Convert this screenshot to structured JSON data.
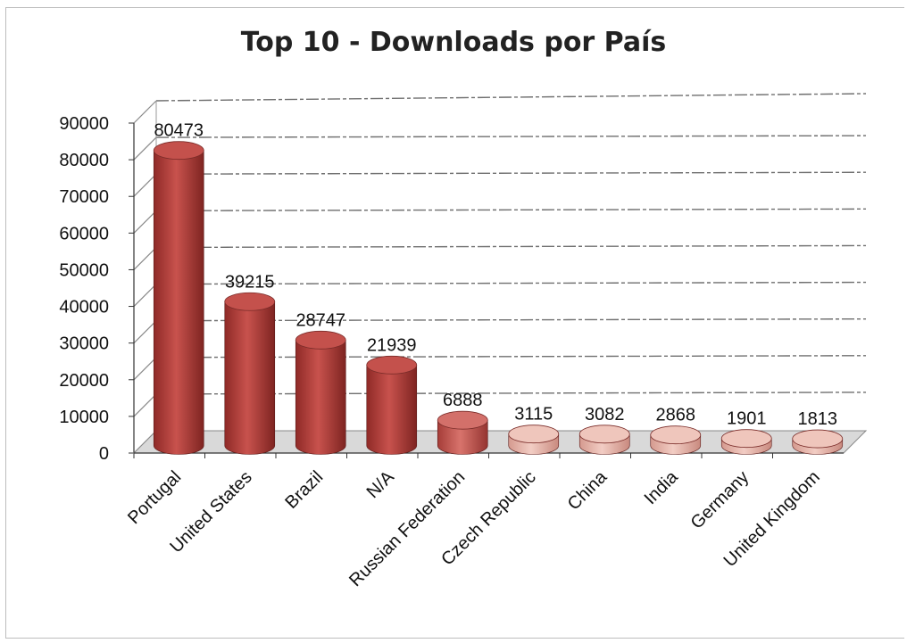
{
  "chart_data": {
    "type": "bar",
    "title": "Top 10 - Downloads por País",
    "xlabel": "",
    "ylabel": "",
    "categories": [
      "Portugal",
      "United States",
      "Brazil",
      "N/A",
      "Russian Federation",
      "Czech Republic",
      "China",
      "India",
      "Germany",
      "United Kingdom"
    ],
    "values": [
      80473,
      39215,
      28747,
      21939,
      6888,
      3115,
      3082,
      2868,
      1901,
      1813
    ],
    "data_labels": [
      "80473",
      "39215",
      "28747",
      "21939",
      "6888",
      "3115",
      "3082",
      "2868",
      "1901",
      "1813"
    ],
    "ylim": [
      0,
      90000
    ],
    "yticks": [
      "0",
      "10000",
      "20000",
      "30000",
      "40000",
      "50000",
      "60000",
      "70000",
      "80000",
      "90000"
    ],
    "grid": true,
    "legend": "none",
    "bar_shape": "cylinder-3d",
    "colors": {
      "high": "#b5403c",
      "mid": "#c95e58",
      "low": "#e8b4a8",
      "grid": "#6f6f6f",
      "axis": "#333333",
      "floor": "#d9d9d9"
    }
  }
}
